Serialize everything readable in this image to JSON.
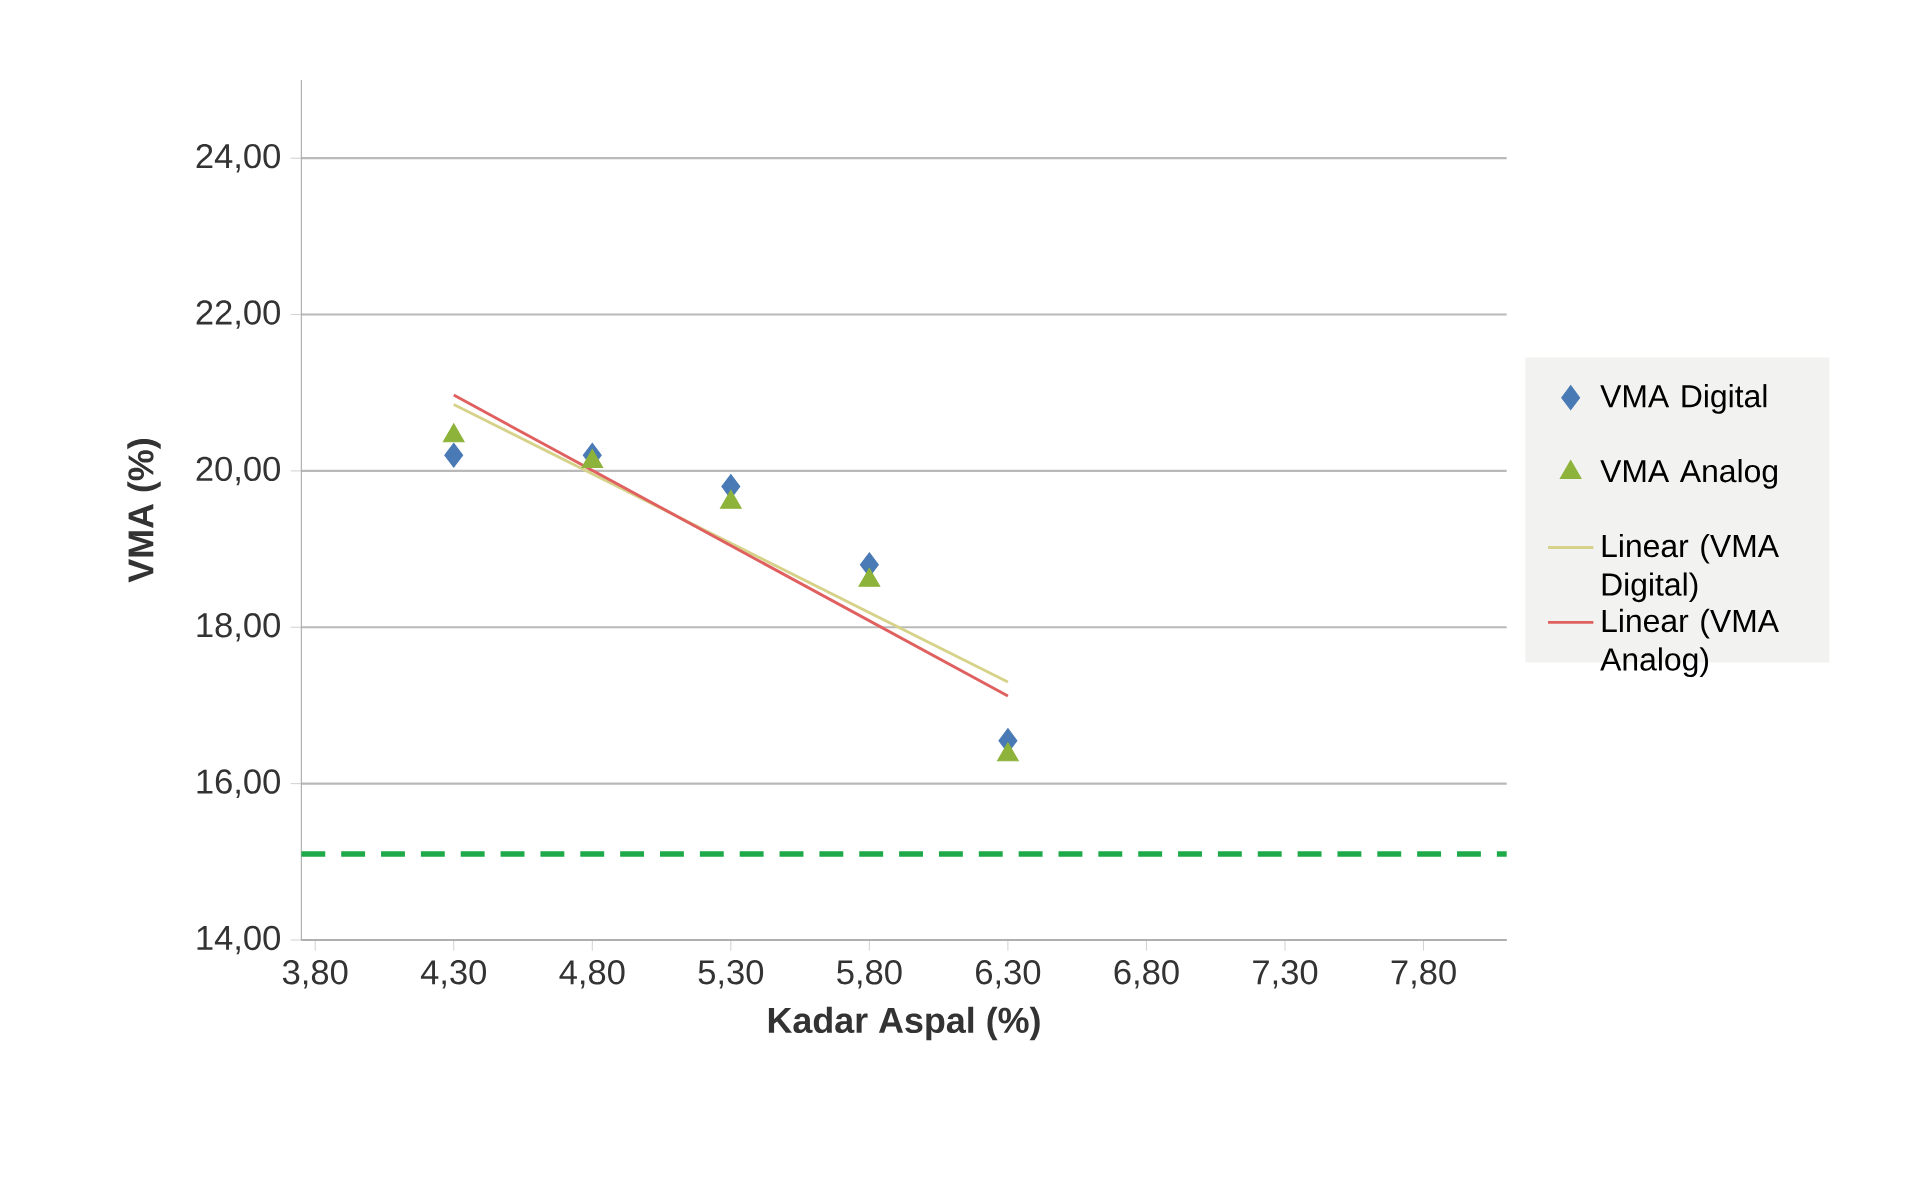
{
  "chart_data": {
    "type": "scatter",
    "xlabel": "Kadar Aspal (%)",
    "ylabel": "VMA  (%)",
    "xlim": [
      3.75,
      8.1
    ],
    "ylim": [
      14,
      25
    ],
    "xticks": [
      {
        "value": 3.8,
        "label": "3,80"
      },
      {
        "value": 4.3,
        "label": "4,30"
      },
      {
        "value": 4.8,
        "label": "4,80"
      },
      {
        "value": 5.3,
        "label": "5,30"
      },
      {
        "value": 5.8,
        "label": "5,80"
      },
      {
        "value": 6.3,
        "label": "6,30"
      },
      {
        "value": 6.8,
        "label": "6,80"
      },
      {
        "value": 7.3,
        "label": "7,30"
      },
      {
        "value": 7.8,
        "label": "7,80"
      }
    ],
    "yticks": [
      {
        "value": 14,
        "label": "14,00"
      },
      {
        "value": 16,
        "label": "16,00"
      },
      {
        "value": 18,
        "label": "18,00"
      },
      {
        "value": 20,
        "label": "20,00"
      },
      {
        "value": 22,
        "label": "22,00"
      },
      {
        "value": 24,
        "label": "24,00"
      }
    ],
    "grid": "y",
    "legend": "right",
    "series": [
      {
        "name": "VMA Digital",
        "marker": "diamond",
        "color": "#4a7ab5",
        "x": [
          4.3,
          4.8,
          5.3,
          5.8,
          6.3
        ],
        "values": [
          20.2,
          20.2,
          19.8,
          18.8,
          16.55
        ]
      },
      {
        "name": "VMA Analog",
        "marker": "triangle",
        "color": "#8db33a",
        "x": [
          4.3,
          4.8,
          5.3,
          5.8,
          6.3
        ],
        "values": [
          20.45,
          20.12,
          19.6,
          18.6,
          16.37
        ]
      },
      {
        "name": "Linear (VMA Digital)",
        "type": "line",
        "marker": "none",
        "line_style": "solid",
        "color": "#d6d28a",
        "x": [
          4.3,
          6.3
        ],
        "values": [
          20.85,
          17.3
        ]
      },
      {
        "name": "Linear (VMA Analog)",
        "type": "line",
        "marker": "none",
        "line_style": "solid",
        "color": "#e06060",
        "x": [
          4.3,
          6.3
        ],
        "values": [
          20.97,
          17.12
        ]
      }
    ],
    "ref_lines": [
      {
        "axis": "y",
        "value": 15.1,
        "color": "#1faa4a",
        "line_style": "dashed"
      }
    ]
  }
}
